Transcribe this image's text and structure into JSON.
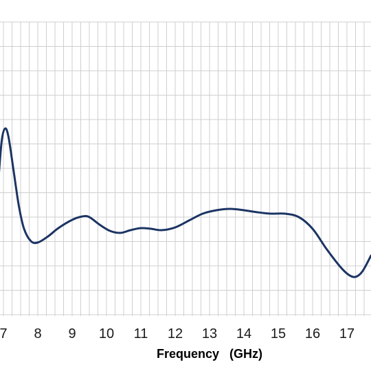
{
  "chart_data": {
    "type": "line",
    "title": "",
    "xlabel": "Frequency   (GHz)",
    "ylabel": "",
    "x_ticks": [
      "7",
      "8",
      "9",
      "10",
      "11",
      "12",
      "13",
      "14",
      "15",
      "16",
      "17"
    ],
    "xlim": [
      6.85,
      17.7
    ],
    "grid": true,
    "series": [
      {
        "color": "#1b3463",
        "points": [
          [
            6.85,
            265
          ],
          [
            6.95,
            205
          ],
          [
            7.05,
            187
          ],
          [
            7.15,
            200
          ],
          [
            7.3,
            250
          ],
          [
            7.45,
            300
          ],
          [
            7.6,
            333
          ],
          [
            7.8,
            351
          ],
          [
            8.0,
            353
          ],
          [
            8.3,
            344
          ],
          [
            8.6,
            332
          ],
          [
            9.0,
            320
          ],
          [
            9.3,
            315
          ],
          [
            9.5,
            316
          ],
          [
            9.8,
            327
          ],
          [
            10.1,
            336
          ],
          [
            10.4,
            339
          ],
          [
            10.7,
            335
          ],
          [
            11.0,
            332
          ],
          [
            11.3,
            333
          ],
          [
            11.6,
            335
          ],
          [
            12.0,
            331
          ],
          [
            12.4,
            321
          ],
          [
            12.8,
            311
          ],
          [
            13.2,
            306
          ],
          [
            13.6,
            304
          ],
          [
            14.0,
            306
          ],
          [
            14.4,
            309
          ],
          [
            14.8,
            311
          ],
          [
            15.2,
            311
          ],
          [
            15.6,
            316
          ],
          [
            16.0,
            333
          ],
          [
            16.4,
            362
          ],
          [
            16.8,
            388
          ],
          [
            17.05,
            400
          ],
          [
            17.25,
            403
          ],
          [
            17.45,
            395
          ],
          [
            17.7,
            372
          ]
        ]
      }
    ]
  }
}
